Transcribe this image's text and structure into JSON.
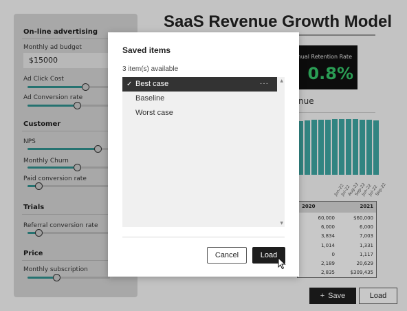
{
  "app": {
    "title": "SaaS Revenue Growth Model",
    "sidebar": {
      "sections": [
        {
          "title": "On-line advertising",
          "fields": [
            {
              "label": "Monthly ad budget",
              "value": "$15000"
            },
            {
              "label": "Ad Click Cost",
              "level": 0.7
            },
            {
              "label": "Ad Conversion rate",
              "level": 0.6
            }
          ]
        },
        {
          "title": "Customer",
          "fields": [
            {
              "label": "NPS",
              "level": 0.85
            },
            {
              "label": "Monthly Churn",
              "level": 0.6
            },
            {
              "label": "Paid conversion rate",
              "level": 0.13
            }
          ]
        },
        {
          "title": "Trials",
          "fields": [
            {
              "label": "Referral conversion rate",
              "level": 0.13
            }
          ]
        },
        {
          "title": "Price",
          "fields": [
            {
              "label": "Monthly subscription",
              "level": 0.35
            }
          ]
        }
      ]
    },
    "kpi": {
      "label": "nual Retention Rate",
      "value": "0.8%",
      "value_color": "#35c46a"
    },
    "chart_heading": "nue",
    "chart_data": {
      "type": "bar",
      "categories": [
        "",
        "",
        "",
        "",
        "",
        "",
        "",
        "",
        "",
        "",
        "",
        ""
      ],
      "x_tick_labels": [
        "",
        "",
        "",
        "",
        "",
        "Jun-22",
        "Jul-22",
        "Aug-22",
        "Sep-22",
        "Jun-22",
        "Jul-22",
        "Sep-22"
      ],
      "values": [
        93,
        94,
        95,
        95,
        95,
        96,
        96,
        96,
        96,
        95,
        95,
        94
      ],
      "bar_color": "#3ea6a2"
    },
    "table": {
      "headers": [
        "2020",
        "2021"
      ],
      "rows": [
        [
          "60,000",
          "$60,000"
        ],
        [
          "6,000",
          "6,000"
        ],
        [
          "3,834",
          "7,003"
        ],
        [
          "1,014",
          "1,331"
        ],
        [
          "0",
          "1,117"
        ],
        [
          "2,189",
          "20,629"
        ],
        [
          "2,835",
          "$309,435"
        ]
      ]
    },
    "buttons": {
      "save": "Save",
      "load": "Load"
    }
  },
  "modal": {
    "title": "Saved items",
    "count_text": "3 item(s) available",
    "items": [
      "Best case",
      "Baseline",
      "Worst case"
    ],
    "selected_index": 0,
    "cancel_label": "Cancel",
    "load_label": "Load"
  },
  "icons": {
    "check": "check-icon",
    "more": "more-icon",
    "plus": "plus-icon",
    "cursor": "cursor-icon"
  },
  "colors": {
    "accent_teal": "#2f8f8d",
    "dark_button": "#1e1e1e"
  }
}
